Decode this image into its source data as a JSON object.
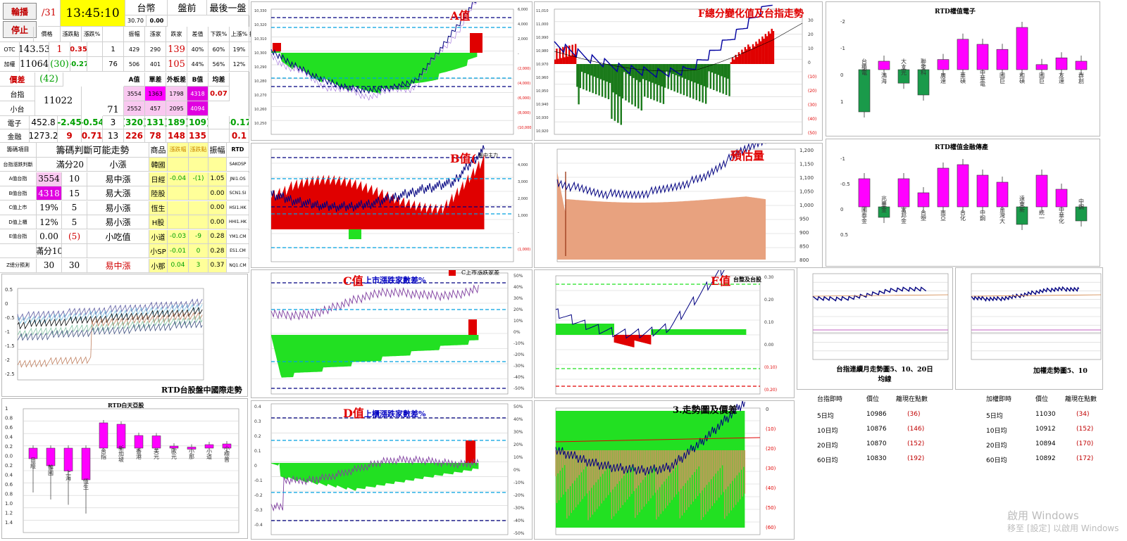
{
  "buttons": {
    "carousel": "輪播",
    "stop": "停止"
  },
  "header": {
    "date": "/31",
    "time": "13:45:10",
    "currency": "台幣",
    "session": "盤前",
    "last": "最後一盤",
    "rate": "30.70",
    "rate2": "0.00"
  },
  "quote_cols": [
    "價格",
    "漲跌點",
    "漲跌%",
    "",
    "振幅",
    "漲家",
    "跌家",
    "差值",
    "下跌%",
    "上漲%",
    "振幅%"
  ],
  "quotes": [
    {
      "name": "OTC",
      "price": "143.53",
      "chg": "1",
      "pct": "0.35",
      "amp": "1",
      "up": "429",
      "dn": "290",
      "diff": "139",
      "dnp": "40%",
      "upp": "60%",
      "ampp": "19%"
    },
    {
      "name": "加權",
      "price": "11064",
      "chg": "(30)",
      "pct": "-0.27",
      "amp": "76",
      "up": "506",
      "dn": "401",
      "diff": "105",
      "dnp": "44%",
      "upp": "56%",
      "ampp": "12%"
    }
  ],
  "bond": {
    "label": "價差",
    "value": "(42)"
  },
  "ab_header": [
    "A值",
    "單差",
    "外板差",
    "B值",
    "均差"
  ],
  "futures": [
    {
      "name": "台指",
      "price": "11022",
      "a": "3554",
      "b": "1363",
      "c": "1798",
      "d": "4318",
      "e": "0.07"
    },
    {
      "name": "小台",
      "amp": "71",
      "a": "2552",
      "b": "457",
      "c": "2095",
      "d": "4094"
    }
  ],
  "sectors": [
    {
      "name": "電子",
      "price": "452.8",
      "chg": "-2.45",
      "pct": "-0.54",
      "amp": "3",
      "up": "(320)",
      "dn": "(131)",
      "diff": "(189)",
      "dnp": "(109)",
      "ampp": "-0.17"
    },
    {
      "name": "金融",
      "price": "1273.2",
      "chg": "9",
      "pct": "0.71",
      "amp": "13",
      "up": "226",
      "dn": "78",
      "diff": "148",
      "dnp": "135",
      "ampp": "0.1"
    }
  ],
  "trend_header": {
    "a": "籌碼項目",
    "b": "籌碼判斷可能走勢",
    "c": "商品",
    "d": "漲跌幅",
    "e": "漲跌點",
    "f": "振幅",
    "g": "RTD"
  },
  "trend_rows": [
    {
      "k": "台指漲跌判斷",
      "v": "滿分20",
      "j": "小漲",
      "p": "韓國",
      "q": "",
      "r": "",
      "s": "",
      "rtd": "SAKOSP"
    },
    {
      "k": "A值台指",
      "v": "3554",
      "n": "10",
      "j": "易中漲",
      "p": "日經",
      "q": "-0.04",
      "r": "-(1)",
      "s": "1.05",
      "rtd": "JNI1.OS"
    },
    {
      "k": "B值台指",
      "v": "4318",
      "n": "15",
      "j": "易大漲",
      "p": "陸股",
      "q": "",
      "r": "",
      "s": "0.00",
      "rtd": "SCN1.SI"
    },
    {
      "k": "C值上市",
      "v": "19%",
      "n": "5",
      "j": "易小漲",
      "p": "恆生",
      "q": "",
      "r": "",
      "s": "0.00",
      "rtd": "HSI1.HK"
    },
    {
      "k": "D值上櫃",
      "v": "12%",
      "n": "5",
      "j": "易小漲",
      "p": "H股",
      "q": "",
      "r": "",
      "s": "0.00",
      "rtd": "HHI1.HK"
    },
    {
      "k": "E值台指",
      "v": "0.00",
      "n": "(5)",
      "j": "小吃值",
      "p": "小道",
      "q": "-0.03",
      "r": "-9",
      "s": "0.28",
      "rtd": "YM1.CM"
    },
    {
      "k": "",
      "v": "滿分10",
      "n": "",
      "j": "",
      "p": "小SP",
      "q": "-0.01",
      "r": "0",
      "s": "0.28",
      "rtd": "ES1.CM"
    },
    {
      "k": "Z總分預測",
      "v": "30",
      "n": "30",
      "j": "易中漲",
      "p": "小那",
      "q": "0.04",
      "r": "3",
      "s": "0.37",
      "rtd": "NQ1.CM"
    }
  ],
  "chart_titles": {
    "a": "A值",
    "f": "F總分變化值及台指走勢",
    "rtd_e": "RTD權值電子",
    "b": "B值(",
    "b_sub": "盤中主力",
    "est": "預估量",
    "rtd_f": "RTD權值金融傳產",
    "c": "C值",
    "c_sub": "上市漲跌家數差%",
    "c_legend": "C上市漲跌家差",
    "e": "E值",
    "e_sub": "台整及台股",
    "intl": "RTD台股盤中國際走勢",
    "d": "D值",
    "d_sub": "上櫃漲跌家數差%",
    "three": "3.走勢圖及價差",
    "tx_ma": "台指連續月走勢圖5、10、20日均線",
    "twse_ma": "加權走勢圖5、10",
    "asia": "RTD白天亞股"
  },
  "rtd_electronics": {
    "labels": [
      "台積電",
      "鴻海",
      "大立光",
      "聯發科",
      "廣達",
      "華碩",
      "中華電",
      "國巨",
      "和碩",
      "國巨",
      "友達",
      "群創"
    ],
    "values": [
      -2.5,
      0.5,
      -0.8,
      -1.5,
      0.6,
      1.8,
      1.5,
      1.2,
      2.5,
      0.3,
      0.7,
      0.5
    ]
  },
  "rtd_finance": {
    "labels": [
      "國泰金",
      "兆豐金",
      "富邦金",
      "台塑",
      "南亞",
      "台化",
      "中鋼",
      "台灣大",
      "遠東新",
      "統一",
      "中華化",
      "中鋼"
    ],
    "values": [
      0.8,
      -0.3,
      0.8,
      0.4,
      1.1,
      1.2,
      0.9,
      0.7,
      -0.5,
      0.9,
      0.5,
      -0.4
    ]
  },
  "asia_stocks": {
    "labels": [
      "日經",
      "韓國",
      "上海",
      "恆生",
      "台指",
      "新加坡",
      "香港",
      "美元",
      "歐元",
      "小那",
      "小道",
      "小標普"
    ],
    "values": [
      -0.3,
      -0.5,
      -0.65,
      -0.9,
      0.72,
      0.68,
      0.36,
      0.35,
      0.06,
      0.03,
      0.1,
      0.12
    ]
  },
  "ma_tx": {
    "header": [
      "台指即時",
      "價位",
      "離現在點數"
    ],
    "rows": [
      {
        "k": "5日均",
        "v": "10986",
        "d": "(36)"
      },
      {
        "k": "10日均",
        "v": "10876",
        "d": "(146)"
      },
      {
        "k": "20日均",
        "v": "10870",
        "d": "(152)"
      },
      {
        "k": "60日均",
        "v": "10830",
        "d": "(192)"
      }
    ]
  },
  "ma_twse": {
    "header": [
      "加權即時",
      "價位",
      "離現在點數"
    ],
    "rows": [
      {
        "k": "5日均",
        "v": "11030",
        "d": "(34)"
      },
      {
        "k": "10日均",
        "v": "10912",
        "d": "(152)"
      },
      {
        "k": "20日均",
        "v": "10894",
        "d": "(170)"
      },
      {
        "k": "60日均",
        "v": "10892",
        "d": "(172)"
      }
    ]
  },
  "watermark": {
    "line1": "啟用 Windows",
    "line2": "移至 [設定] 以啟用 Windows"
  },
  "colors": {
    "red": "#e00000",
    "green": "#00e000",
    "navy": "#000080",
    "purple": "#7030a0",
    "magenta": "#ff00ff",
    "accent_yellow": "#ffff00"
  }
}
